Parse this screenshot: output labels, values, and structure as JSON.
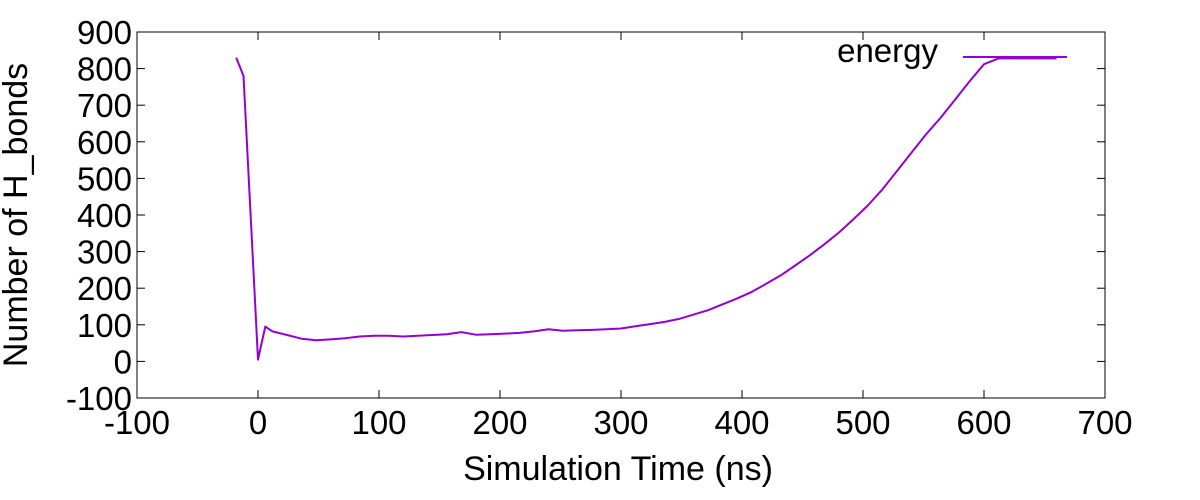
{
  "chart_data": {
    "type": "line",
    "title": "",
    "xlabel": "Simulation Time (ns)",
    "ylabel": "Number of H_bonds",
    "xlim": [
      -100,
      700
    ],
    "ylim": [
      -100,
      900
    ],
    "xticks": [
      "-100",
      "0",
      "100",
      "200",
      "300",
      "400",
      "500",
      "600",
      "700"
    ],
    "yticks": [
      "-100",
      "0",
      "100",
      "200",
      "300",
      "400",
      "500",
      "600",
      "700",
      "800",
      "900"
    ],
    "grid": false,
    "legend_position": "top-right",
    "series": [
      {
        "name": "energy",
        "color": "#9400d3",
        "x": [
          -18,
          -12,
          0,
          6,
          12,
          24,
          36,
          48,
          60,
          72,
          84,
          96,
          108,
          120,
          132,
          144,
          156,
          168,
          180,
          192,
          204,
          216,
          228,
          240,
          252,
          264,
          276,
          288,
          300,
          312,
          324,
          336,
          348,
          360,
          372,
          384,
          396,
          408,
          420,
          432,
          444,
          456,
          468,
          480,
          492,
          504,
          516,
          528,
          540,
          552,
          564,
          576,
          588,
          600,
          612,
          624,
          636,
          648,
          660
        ],
        "y": [
          830,
          780,
          5,
          95,
          82,
          72,
          62,
          58,
          60,
          63,
          68,
          70,
          70,
          68,
          70,
          72,
          74,
          80,
          73,
          74,
          76,
          78,
          82,
          88,
          84,
          85,
          86,
          88,
          90,
          96,
          102,
          108,
          116,
          128,
          140,
          156,
          172,
          190,
          212,
          235,
          262,
          290,
          320,
          352,
          388,
          426,
          470,
          520,
          570,
          620,
          665,
          715,
          765,
          812,
          828,
          828,
          828,
          828,
          828
        ]
      }
    ]
  }
}
